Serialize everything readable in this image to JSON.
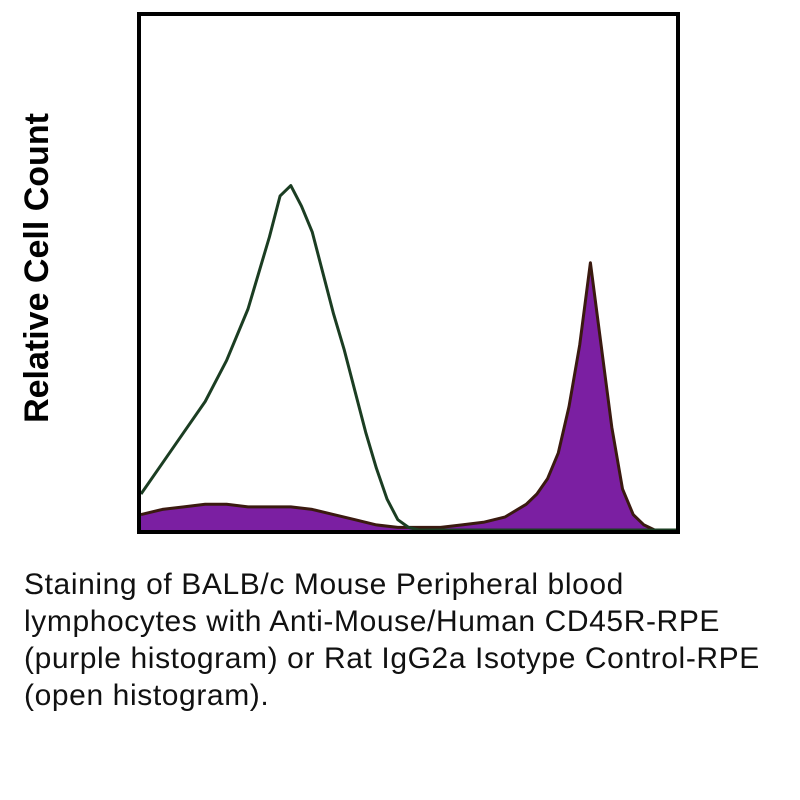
{
  "chart_data": {
    "type": "area",
    "title": "",
    "xlabel": "",
    "ylabel": "Relative Cell Count",
    "xlim": [
      0,
      100
    ],
    "ylim": [
      0,
      100
    ],
    "grid": false,
    "series": [
      {
        "fill": "#7b1fa2",
        "edge": "#3a1a10",
        "x": [
          0,
          4,
          8,
          12,
          16,
          20,
          24,
          28,
          32,
          36,
          40,
          44,
          48,
          52,
          56,
          60,
          64,
          68,
          72,
          74,
          76,
          78,
          80,
          82,
          84,
          86,
          88,
          90,
          92,
          94,
          96,
          100
        ],
        "y": [
          3,
          4,
          4.5,
          5,
          5,
          4.5,
          4.5,
          4.5,
          4,
          3,
          2,
          1,
          0.5,
          0.5,
          0.5,
          1,
          1.5,
          2.5,
          5,
          7,
          10,
          15,
          24,
          36,
          52,
          36,
          20,
          8,
          3,
          1,
          0,
          0
        ]
      },
      {
        "fill": "none",
        "edge": "#1b3d22",
        "x": [
          0,
          4,
          8,
          12,
          16,
          20,
          24,
          26,
          28,
          30,
          32,
          34,
          36,
          38,
          40,
          42,
          44,
          46,
          48,
          50,
          52,
          54,
          56,
          58,
          60,
          100
        ],
        "y": [
          7,
          13,
          19,
          25,
          33,
          43,
          57,
          65,
          67,
          63,
          58,
          50,
          42,
          35,
          27,
          19,
          12,
          6,
          2,
          0.5,
          0,
          0,
          0,
          0,
          0,
          0
        ]
      }
    ]
  },
  "caption": "Staining of BALB/c Mouse Peripheral blood lymphocytes with Anti-Mouse/Human CD45R-RPE (purple histogram) or Rat IgG2a Isotype Control-RPE (open histogram)."
}
